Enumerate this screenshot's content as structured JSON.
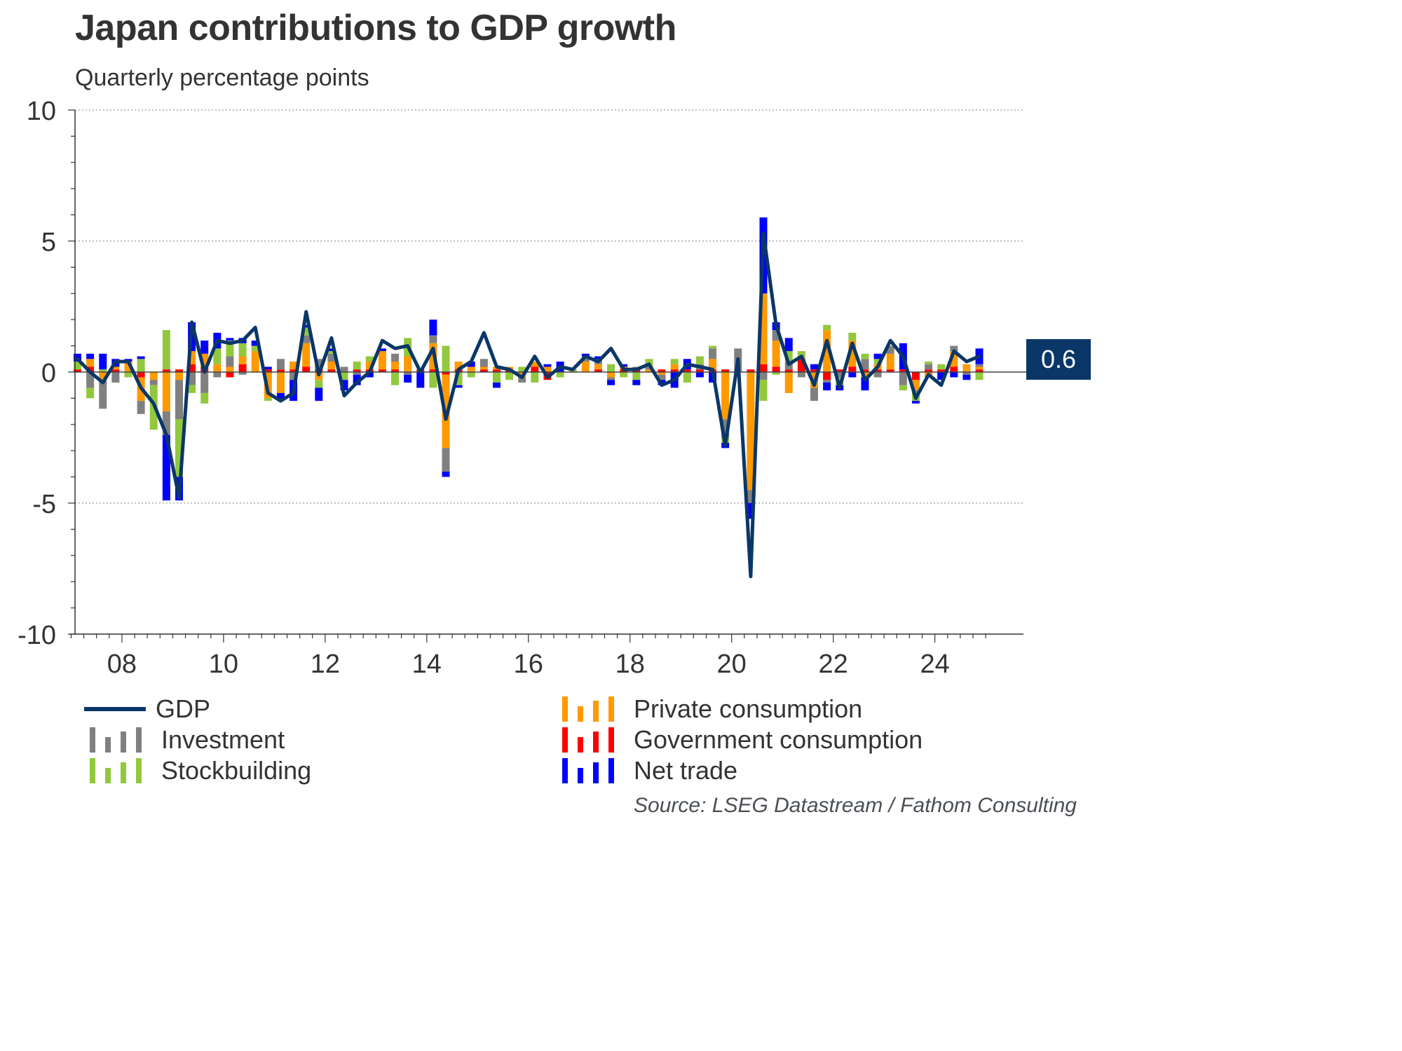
{
  "title": "Japan contributions to GDP growth",
  "subtitle": "Quarterly percentage points",
  "source": "Source: LSEG Datastream / Fathom Consulting",
  "last_value_label": "0.6",
  "colors": {
    "gdp": "#0a3768",
    "investment": "#808080",
    "stockbuilding": "#92c83e",
    "private_consumption": "#ff9900",
    "government_consumption": "#ff0000",
    "net_trade": "#0000ff",
    "axis": "#333333",
    "grid": "#999999"
  },
  "chart_data": {
    "type": "bar",
    "subtype": "stacked bar with line overlay",
    "title": "Japan contributions to GDP growth",
    "subtitle": "Quarterly percentage points",
    "xlabel": "",
    "ylabel": "",
    "ylim": [
      -10,
      10
    ],
    "yticks": [
      "10",
      "5",
      "0",
      "-5",
      "-10"
    ],
    "ytick_values": [
      10,
      5,
      0,
      -5,
      -10
    ],
    "xticks": [
      "08",
      "10",
      "12",
      "14",
      "16",
      "18",
      "20",
      "22",
      "24"
    ],
    "xtick_years": [
      2008,
      2010,
      2012,
      2014,
      2016,
      2018,
      2020,
      2022,
      2024
    ],
    "x_start": "2007Q1",
    "x_end": "2024Q4",
    "grid": "horizontal dotted at 10, 5, -5",
    "legend": "bottom",
    "legend_entries": [
      "GDP",
      "Investment",
      "Stockbuilding",
      "Private consumption",
      "Government consumption",
      "Net trade"
    ],
    "categories": [
      "2007Q1",
      "2007Q2",
      "2007Q3",
      "2007Q4",
      "2008Q1",
      "2008Q2",
      "2008Q3",
      "2008Q4",
      "2009Q1",
      "2009Q2",
      "2009Q3",
      "2009Q4",
      "2010Q1",
      "2010Q2",
      "2010Q3",
      "2010Q4",
      "2011Q1",
      "2011Q2",
      "2011Q3",
      "2011Q4",
      "2012Q1",
      "2012Q2",
      "2012Q3",
      "2012Q4",
      "2013Q1",
      "2013Q2",
      "2013Q3",
      "2013Q4",
      "2014Q1",
      "2014Q2",
      "2014Q3",
      "2014Q4",
      "2015Q1",
      "2015Q2",
      "2015Q3",
      "2015Q4",
      "2016Q1",
      "2016Q2",
      "2016Q3",
      "2016Q4",
      "2017Q1",
      "2017Q2",
      "2017Q3",
      "2017Q4",
      "2018Q1",
      "2018Q2",
      "2018Q3",
      "2018Q4",
      "2019Q1",
      "2019Q2",
      "2019Q3",
      "2019Q4",
      "2020Q1",
      "2020Q2",
      "2020Q3",
      "2020Q4",
      "2021Q1",
      "2021Q2",
      "2021Q3",
      "2021Q4",
      "2022Q1",
      "2022Q2",
      "2022Q3",
      "2022Q4",
      "2023Q1",
      "2023Q2",
      "2023Q3",
      "2023Q4",
      "2024Q1",
      "2024Q2",
      "2024Q3",
      "2024Q4"
    ],
    "series": [
      {
        "name": "GDP",
        "kind": "line",
        "values": [
          0.5,
          0.0,
          -0.4,
          0.4,
          0.4,
          -0.6,
          -1.2,
          -2.4,
          -4.8,
          1.9,
          0.0,
          1.2,
          1.1,
          1.2,
          1.7,
          -0.8,
          -1.1,
          -0.8,
          2.3,
          -0.1,
          1.3,
          -0.9,
          -0.4,
          0.0,
          1.2,
          0.9,
          1.0,
          0.0,
          0.9,
          -1.8,
          0.1,
          0.4,
          1.5,
          0.2,
          0.1,
          -0.2,
          0.6,
          -0.2,
          0.2,
          0.1,
          0.6,
          0.4,
          0.9,
          0.1,
          0.1,
          0.3,
          -0.5,
          -0.3,
          0.3,
          0.2,
          0.1,
          -2.8,
          0.5,
          -7.8,
          5.3,
          1.8,
          0.3,
          0.6,
          -0.5,
          1.2,
          -0.6,
          1.1,
          -0.3,
          0.2,
          1.2,
          0.6,
          -1.0,
          -0.1,
          -0.5,
          0.8,
          0.4,
          0.6
        ]
      },
      {
        "name": "Investment",
        "kind": "bar",
        "values": [
          0.0,
          -0.6,
          -1.1,
          -0.4,
          0.0,
          -0.5,
          -0.2,
          -0.9,
          -1.5,
          -0.5,
          -0.8,
          -0.2,
          0.4,
          -0.1,
          0.0,
          0.0,
          0.4,
          -0.3,
          0.3,
          0.4,
          0.3,
          0.2,
          -0.1,
          0.0,
          0.0,
          0.3,
          -0.1,
          0.0,
          0.3,
          -0.9,
          0.0,
          0.0,
          0.3,
          0.0,
          0.0,
          -0.2,
          0.0,
          0.0,
          0.0,
          0.0,
          0.2,
          0.2,
          -0.1,
          0.0,
          0.1,
          0.1,
          -0.2,
          0.0,
          0.0,
          0.2,
          0.4,
          -0.7,
          0.9,
          -0.5,
          -0.3,
          0.4,
          0.3,
          -0.2,
          -0.5,
          -0.1,
          -0.2,
          0.0,
          0.4,
          -0.2,
          0.3,
          -0.5,
          -0.1,
          0.2,
          0.0,
          0.2,
          -0.1,
          0.1
        ]
      },
      {
        "name": "Stockbuilding",
        "kind": "bar",
        "values": [
          0.3,
          -0.4,
          0.1,
          0.0,
          -0.2,
          0.5,
          -1.7,
          1.5,
          -2.2,
          -0.3,
          -0.4,
          0.6,
          0.6,
          0.5,
          0.2,
          -0.1,
          0.0,
          0.0,
          0.3,
          -0.3,
          0.1,
          -0.3,
          0.3,
          0.2,
          0.0,
          -0.5,
          0.7,
          0.0,
          -0.6,
          1.0,
          -0.5,
          -0.2,
          0.0,
          -0.4,
          -0.3,
          0.2,
          -0.4,
          0.0,
          -0.2,
          0.1,
          0.0,
          0.0,
          0.3,
          -0.2,
          -0.3,
          0.3,
          0.0,
          0.2,
          -0.4,
          0.3,
          0.1,
          -0.2,
          0.0,
          0.0,
          -0.8,
          -0.1,
          0.4,
          0.3,
          0.0,
          0.2,
          -0.3,
          0.3,
          0.2,
          0.2,
          0.0,
          -0.2,
          -0.3,
          0.1,
          0.2,
          0.0,
          0.0,
          -0.3
        ]
      },
      {
        "name": "Private consumption",
        "kind": "bar",
        "values": [
          0.0,
          0.3,
          -0.3,
          0.1,
          0.4,
          -0.9,
          -0.3,
          -1.5,
          -0.3,
          0.5,
          0.5,
          0.3,
          0.2,
          0.3,
          0.8,
          -1.0,
          -0.8,
          0.3,
          0.9,
          -0.3,
          0.3,
          0.0,
          0.0,
          0.3,
          0.7,
          0.3,
          0.6,
          0.0,
          1.0,
          -2.8,
          0.3,
          0.2,
          0.1,
          0.1,
          0.1,
          -0.2,
          0.2,
          0.2,
          0.0,
          0.0,
          0.4,
          0.2,
          -0.2,
          0.1,
          0.0,
          0.1,
          -0.1,
          0.2,
          0.0,
          0.0,
          0.4,
          -1.8,
          0.0,
          -4.5,
          2.7,
          1.0,
          -0.8,
          0.0,
          -0.6,
          1.6,
          0.0,
          1.0,
          -0.2,
          0.2,
          0.6,
          0.0,
          -0.4,
          -0.2,
          0.0,
          0.6,
          0.3,
          0.1
        ]
      },
      {
        "name": "Government consumption",
        "kind": "bar",
        "values": [
          0.1,
          0.2,
          0.0,
          0.1,
          0.0,
          -0.2,
          0.0,
          0.1,
          0.1,
          0.3,
          0.2,
          0.0,
          -0.2,
          0.3,
          0.0,
          0.1,
          0.1,
          0.1,
          0.2,
          0.1,
          0.1,
          0.0,
          0.1,
          0.1,
          0.1,
          0.1,
          0.0,
          0.1,
          0.1,
          -0.1,
          0.1,
          0.0,
          0.1,
          0.1,
          0.1,
          0.0,
          0.2,
          -0.3,
          0.0,
          0.0,
          0.0,
          0.1,
          0.0,
          0.1,
          0.1,
          0.0,
          0.1,
          0.1,
          0.1,
          0.1,
          0.1,
          0.1,
          0.0,
          0.1,
          0.3,
          0.2,
          0.1,
          0.5,
          0.1,
          -0.3,
          0.1,
          0.2,
          0.1,
          0.1,
          0.1,
          0.1,
          -0.3,
          0.1,
          0.1,
          0.2,
          0.0,
          0.1
        ]
      },
      {
        "name": "Net trade",
        "kind": "bar",
        "values": [
          0.3,
          0.2,
          0.6,
          0.3,
          0.1,
          0.1,
          0.0,
          -2.5,
          -0.9,
          1.1,
          0.5,
          0.6,
          0.1,
          0.2,
          0.2,
          0.1,
          -0.3,
          -0.8,
          0.1,
          -0.5,
          0.1,
          -0.4,
          -0.4,
          -0.2,
          0.1,
          0.0,
          -0.3,
          -0.6,
          0.6,
          -0.2,
          -0.1,
          0.2,
          0.0,
          -0.2,
          0.0,
          0.0,
          0.0,
          0.1,
          0.4,
          0.0,
          0.1,
          0.1,
          -0.2,
          0.1,
          -0.2,
          0.0,
          -0.2,
          -0.6,
          0.4,
          -0.2,
          -0.4,
          -0.2,
          0.0,
          -0.6,
          2.9,
          0.3,
          0.5,
          0.0,
          0.2,
          -0.3,
          -0.2,
          -0.2,
          -0.5,
          0.2,
          0.0,
          1.0,
          -0.1,
          0.0,
          -0.3,
          -0.2,
          -0.2,
          0.6
        ]
      }
    ]
  }
}
